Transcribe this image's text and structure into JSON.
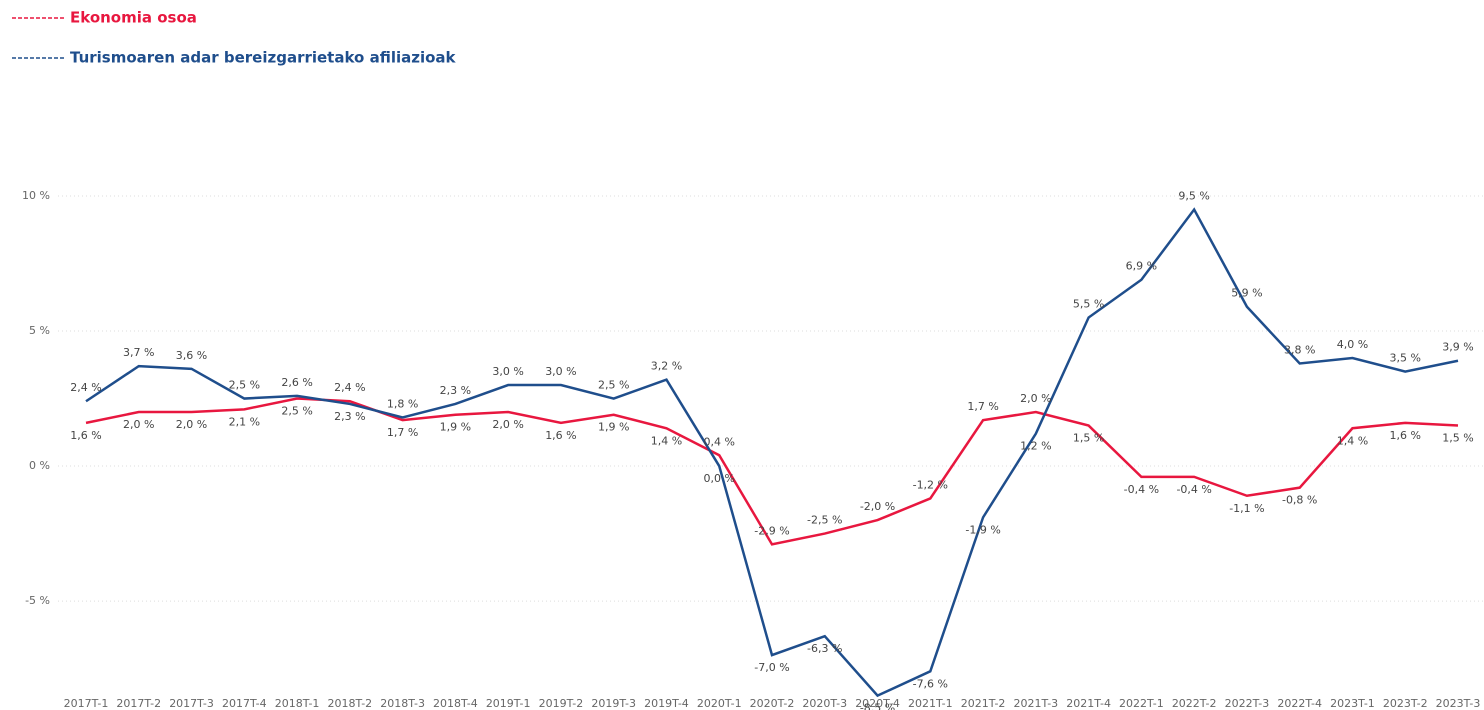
{
  "chart_data": {
    "type": "line",
    "categories": [
      "2017T-1",
      "2017T-2",
      "2017T-3",
      "2017T-4",
      "2018T-1",
      "2018T-2",
      "2018T-3",
      "2018T-4",
      "2019T-1",
      "2019T-2",
      "2019T-3",
      "2019T-4",
      "2020T-1",
      "2020T-2",
      "2020T-3",
      "2020T-4",
      "2021T-1",
      "2021T-2",
      "2021T-3",
      "2021T-4",
      "2022T-1",
      "2022T-2",
      "2022T-3",
      "2022T-4",
      "2023T-1",
      "2023T-2",
      "2023T-3"
    ],
    "series": [
      {
        "name": "Ekonomia osoa",
        "color": "#e8173f",
        "values": [
          1.6,
          2.0,
          2.0,
          2.1,
          2.5,
          2.4,
          1.7,
          1.9,
          2.0,
          1.6,
          1.9,
          1.4,
          0.4,
          -2.9,
          -2.5,
          -2.0,
          -1.2,
          1.7,
          2.0,
          1.5,
          -0.4,
          -0.4,
          -1.1,
          -0.8,
          1.4,
          1.6,
          1.5
        ],
        "value_labels": [
          "1,6 %",
          "2,0 %",
          "2,0 %",
          "2,1 %",
          "2,5 %",
          "2,4 %",
          "1,7 %",
          "1,9 %",
          "2,0 %",
          "1,6 %",
          "1,9 %",
          "1,4 %",
          "0,4 %",
          "-2,9 %",
          "-2,5 %",
          "-2,0 %",
          "-1,2 %",
          "1,7 %",
          "2,0 %",
          "1,5 %",
          "-0,4 %",
          "-0,4 %",
          "-1,1 %",
          "-0,8 %",
          "1,4 %",
          "1,6 %",
          "1,5 %"
        ]
      },
      {
        "name": "Turismoaren adar bereizgarrietako afiliazioak",
        "color": "#1f4e8c",
        "values": [
          2.4,
          3.7,
          3.6,
          2.5,
          2.6,
          2.3,
          1.8,
          2.3,
          3.0,
          3.0,
          2.5,
          3.2,
          0.0,
          -7.0,
          -6.3,
          -8.5,
          -7.6,
          -1.9,
          1.2,
          5.5,
          6.9,
          9.5,
          5.9,
          3.8,
          4.0,
          3.5,
          3.9
        ],
        "value_labels": [
          "2,4 %",
          "3,7 %",
          "3,6 %",
          "2,5 %",
          "2,6 %",
          "2,3 %",
          "1,8 %",
          "2,3 %",
          "3,0 %",
          "3,0 %",
          "2,5 %",
          "3,2 %",
          "0,0 %",
          "-7,0 %",
          "-6,3 %",
          "-8,5 %",
          "-7,6 %",
          "-1,9 %",
          "1,2 %",
          "5,5 %",
          "6,9 %",
          "9,5 %",
          "5,9 %",
          "3,8 %",
          "4,0 %",
          "3,5 %",
          "3,9 %"
        ]
      }
    ],
    "ylim": [
      -8.7,
      12
    ],
    "yticks": [
      {
        "value": -5,
        "label": "-5 %"
      },
      {
        "value": 0,
        "label": "0 %"
      },
      {
        "value": 5,
        "label": "5 %"
      },
      {
        "value": 10,
        "label": "10 %"
      }
    ],
    "grid": true
  }
}
